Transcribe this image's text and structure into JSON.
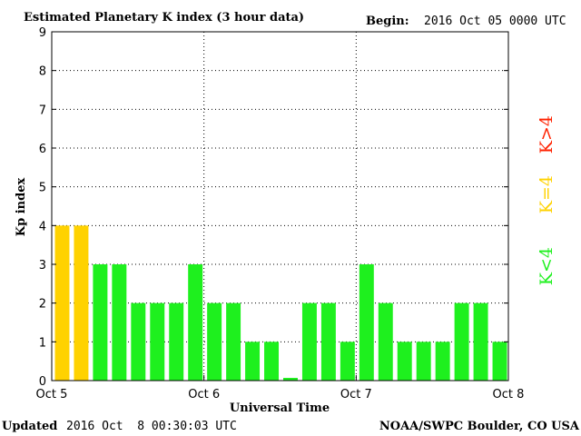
{
  "header": {
    "title": "Estimated Planetary K index (3 hour data)",
    "begin_label": "Begin:",
    "begin_value": "2016 Oct 05 0000 UTC"
  },
  "footer": {
    "updated_label": "Updated",
    "updated_value": "2016 Oct  8 00:30:03 UTC",
    "source": "NOAA/SWPC Boulder, CO USA"
  },
  "legend": {
    "high": "K>4",
    "mid": "K=4",
    "low": "K<4",
    "colors": {
      "high": "#ff2200",
      "mid": "#ffd200",
      "low": "#1ef01e"
    }
  },
  "chart_data": {
    "type": "bar",
    "title": "Estimated Planetary K index (3 hour data)",
    "xlabel": "Universal Time",
    "ylabel": "Kp index",
    "ylim": [
      0,
      9
    ],
    "yticks": [
      "0",
      "1",
      "2",
      "3",
      "4",
      "5",
      "6",
      "7",
      "8",
      "9"
    ],
    "x_tick_labels": [
      "Oct 5",
      "Oct 6",
      "Oct 7",
      "Oct 8"
    ],
    "interval_hours": 3,
    "grid": true,
    "values": [
      4,
      4,
      3,
      3,
      2,
      2,
      2,
      3,
      2,
      2,
      1,
      1,
      0.07,
      2,
      2,
      1,
      3,
      2,
      1,
      1,
      1,
      2,
      2,
      1
    ],
    "colors": [
      "#ffd200",
      "#ffd200",
      "#1ef01e",
      "#1ef01e",
      "#1ef01e",
      "#1ef01e",
      "#1ef01e",
      "#1ef01e",
      "#1ef01e",
      "#1ef01e",
      "#1ef01e",
      "#1ef01e",
      "#1ef01e",
      "#1ef01e",
      "#1ef01e",
      "#1ef01e",
      "#1ef01e",
      "#1ef01e",
      "#1ef01e",
      "#1ef01e",
      "#1ef01e",
      "#1ef01e",
      "#1ef01e",
      "#1ef01e"
    ]
  }
}
